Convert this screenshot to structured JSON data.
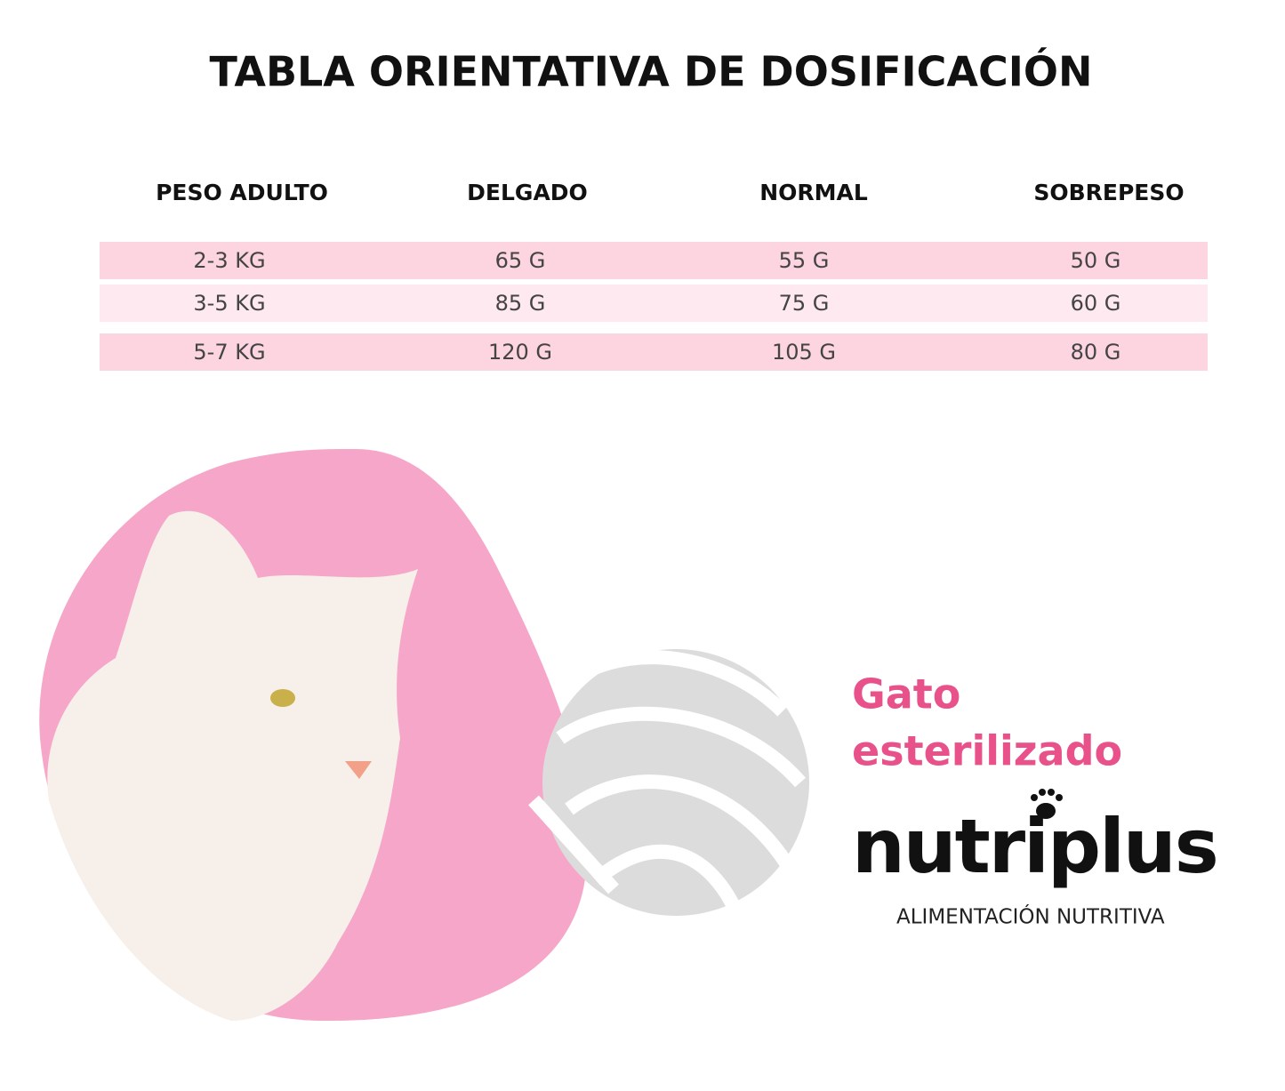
{
  "header": {
    "title": "TABLA ORIENTATIVA DE DOSIFICACIÓN"
  },
  "table": {
    "columns": [
      "PESO ADULTO",
      "DELGADO",
      "NORMAL",
      "SOBREPESO"
    ],
    "rows": [
      [
        "2-3 KG",
        "65 G",
        "55 G",
        "50 G"
      ],
      [
        "3-5 KG",
        "85 G",
        "75 G",
        "60 G"
      ],
      [
        "5-7 KG",
        "120 G",
        "105 G",
        "80 G"
      ]
    ]
  },
  "product": {
    "line1": "Gato",
    "line2": "esterilizado",
    "brand": "nutriplus",
    "tagline": "ALIMENTACIÓN NUTRITIVA"
  }
}
